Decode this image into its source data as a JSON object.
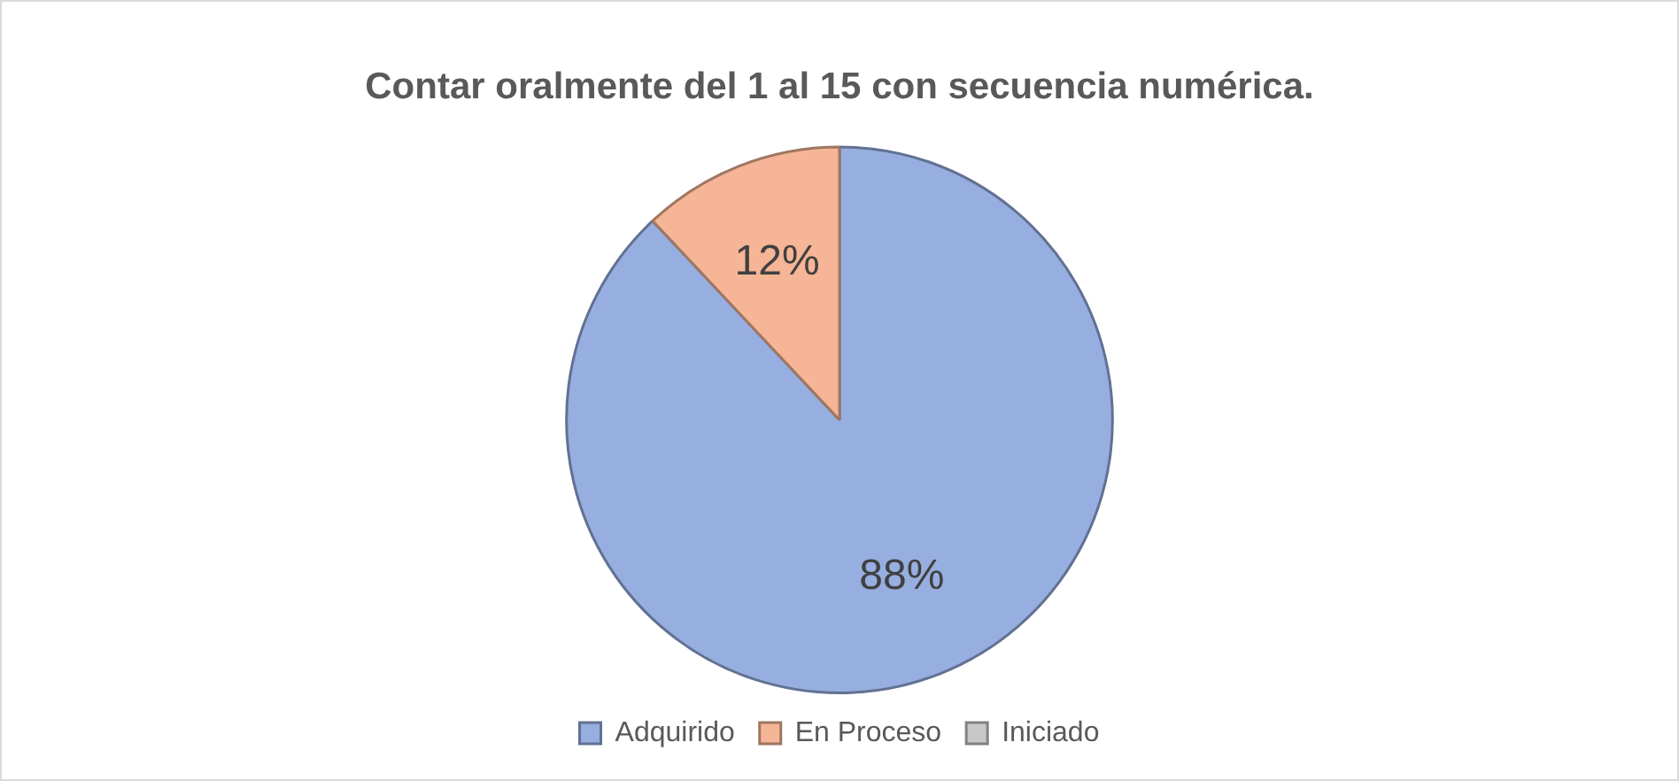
{
  "chart_data": {
    "type": "pie",
    "title": "Contar oralmente del 1 al 15 con secuencia numérica.",
    "categories": [
      "Adquirido",
      "En Proceso",
      "Iniciado"
    ],
    "values": [
      88,
      12,
      0
    ],
    "colors": [
      "#97aee0",
      "#f5b596",
      "#c8c8c8"
    ],
    "value_labels": [
      "88%",
      "12%",
      null
    ],
    "legend": "bottom"
  }
}
